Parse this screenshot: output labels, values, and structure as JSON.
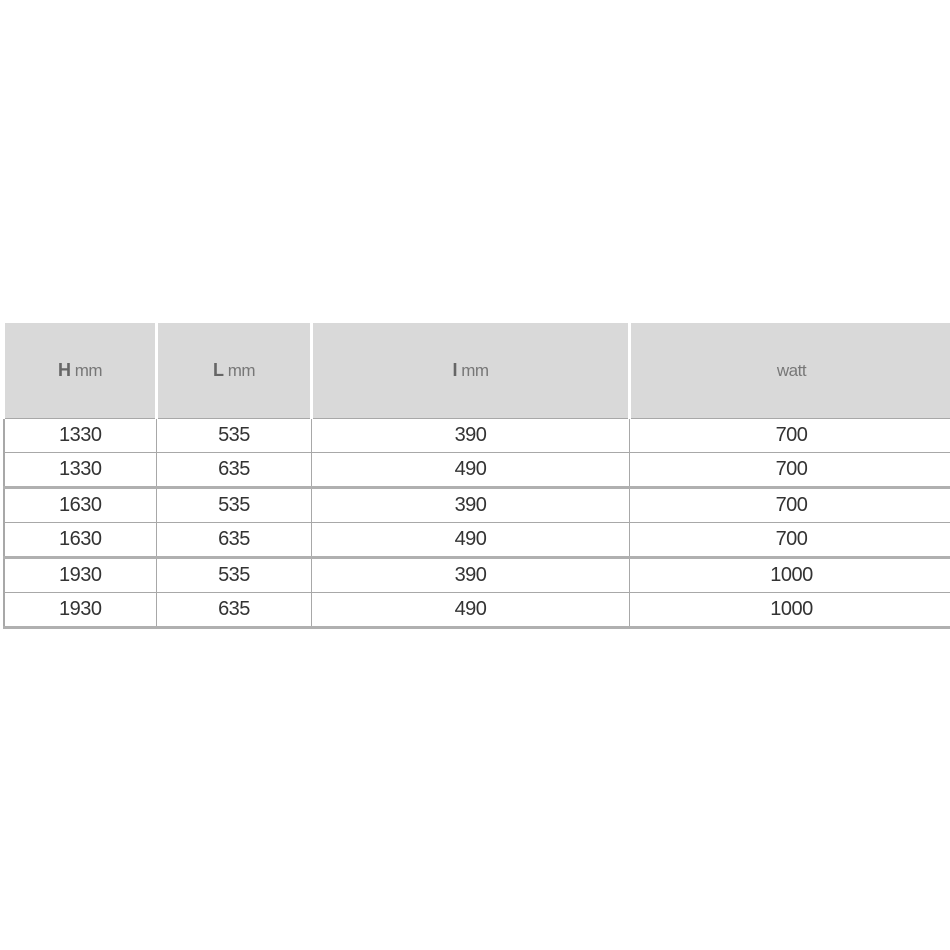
{
  "headers": [
    {
      "bold": "H",
      "unit": "mm"
    },
    {
      "bold": "L",
      "unit": "mm"
    },
    {
      "bold": "I",
      "unit": "mm"
    },
    {
      "bold": "",
      "unit": "watt"
    }
  ],
  "rows": [
    [
      "1330",
      "535",
      "390",
      "700"
    ],
    [
      "1330",
      "635",
      "490",
      "700"
    ],
    [
      "1630",
      "535",
      "390",
      "700"
    ],
    [
      "1630",
      "635",
      "490",
      "700"
    ],
    [
      "1930",
      "535",
      "390",
      "1000"
    ],
    [
      "1930",
      "635",
      "490",
      "1000"
    ]
  ],
  "colors": {
    "header_bg": "#d9d9d9",
    "border": "#a8a8a8"
  }
}
